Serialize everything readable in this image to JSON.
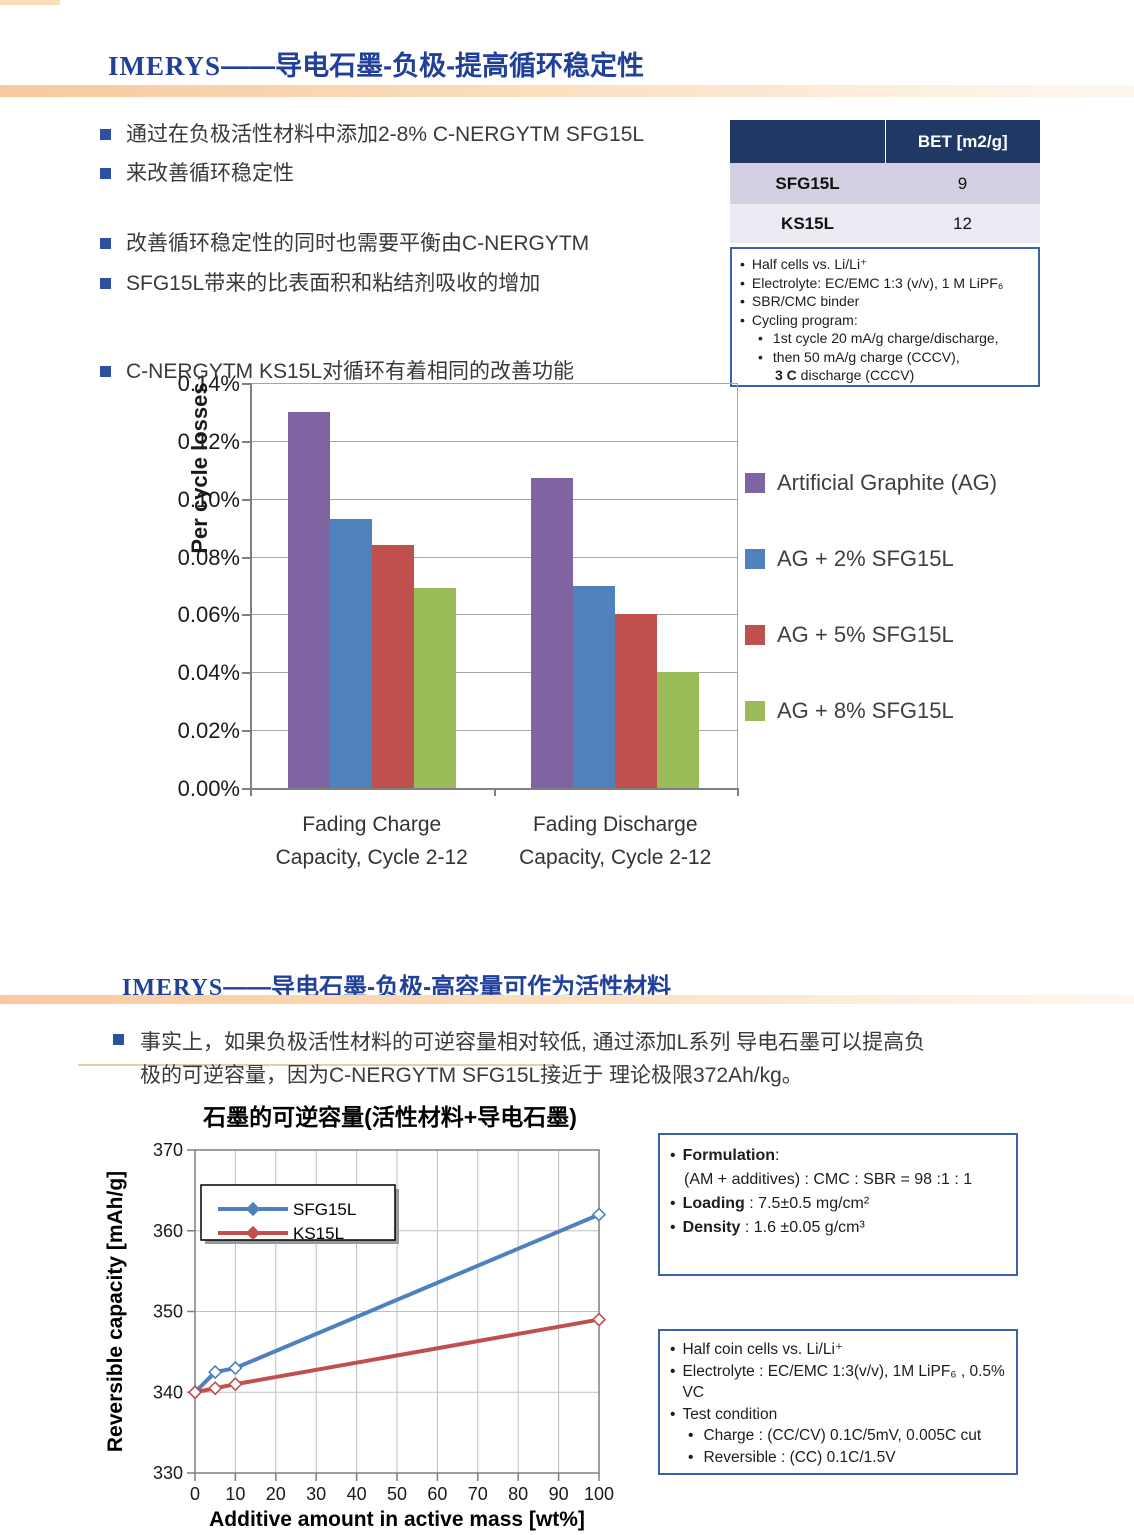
{
  "slide1": {
    "header": {
      "brand": "IMERYS",
      "title": "——导电石墨-负极-提高循环稳定性"
    },
    "bullets": [
      "通过在负极活性材料中添加2-8% C-NERGYTM SFG15L",
      "来改善循环稳定性",
      "改善循环稳定性的同时也需要平衡由C-NERGYTM",
      "SFG15L带来的比表面积和粘结剂吸收的增加",
      "C-NERGYTM KS15L对循环有着相同的改善功能"
    ],
    "bet_table": {
      "col_header": "BET [m2/g]",
      "rows": [
        {
          "material": "SFG15L",
          "bet": "9"
        },
        {
          "material": "KS15L",
          "bet": "12"
        }
      ]
    },
    "conditions": {
      "items": [
        "Half cells vs. Li/Li⁺",
        "Electrolyte: EC/EMC 1:3 (v/v), 1 M LiPF₆",
        "SBR/CMC binder",
        "Cycling program:"
      ],
      "sub_items": [
        "1st cycle 20 mA/g charge/discharge,",
        "then 50  mA/g charge (CCCV),"
      ],
      "cont_bold": "3 C",
      "cont_rest": " discharge (CCCV)"
    }
  },
  "slide2": {
    "header": {
      "brand": "IMERYS",
      "title": "——导电石墨-负极-高容量可作为活性材料"
    },
    "paragraph_line1": "事实上，如果负极活性材料的可逆容量相对较低, 通过添加L系列 导电石墨可以提高负",
    "paragraph_line2": "极的可逆容量，因为C-NERGYTM SFG15L接近于 理论极限372Ah/kg。",
    "formulation_box": {
      "l1_bold": "Formulation",
      "l1_rest": ":",
      "l2": "(AM + additives) : CMC : SBR = 98 :1 : 1",
      "l3_bold": "Loading",
      "l3_rest": " : 7.5±0.5 mg/cm²",
      "l4_bold": "Density",
      "l4_rest": " : 1.6 ±0.05 g/cm³"
    },
    "test_box": {
      "items": [
        "Half coin cells vs. Li/Li⁺",
        "Electrolyte : EC/EMC 1:3(v/v), 1M LiPF₆ , 0.5% VC",
        "Test condition"
      ],
      "sub_items": [
        "Charge : (CC/CV) 0.1C/5mV, 0.005C cut",
        "Reversible : (CC) 0.1C/1.5V"
      ]
    }
  },
  "chart_data": [
    {
      "type": "bar",
      "title": "",
      "ylabel": "Per cycle losses",
      "categories": [
        "Fading Charge Capacity, Cycle 2-12",
        "Fading Discharge Capacity, Cycle 2-12"
      ],
      "series": [
        {
          "name": "Artificial Graphite (AG)",
          "color": "#8064A2",
          "values": [
            0.13,
            0.107
          ]
        },
        {
          "name": "AG + 2% SFG15L",
          "color": "#4F81BD",
          "values": [
            0.093,
            0.07
          ]
        },
        {
          "name": "AG + 5% SFG15L",
          "color": "#C0504D",
          "values": [
            0.084,
            0.06
          ]
        },
        {
          "name": "AG + 8% SFG15L",
          "color": "#9BBB59",
          "values": [
            0.069,
            0.04
          ]
        }
      ],
      "ylim": [
        0,
        0.14
      ],
      "ytick_labels": [
        "0.14%",
        "0.12%",
        "0.10%",
        "0.08%",
        "0.06%",
        "0.04%",
        "0.02%",
        "0.00%"
      ],
      "grid": true,
      "legend_position": "right"
    },
    {
      "type": "line",
      "title": "石墨的可逆容量(活性材料+导电石墨)",
      "xlabel": "Additive amount in active mass  [wt%]",
      "ylabel": "Reversible capacity [mAh/g]",
      "xlim": [
        0,
        100
      ],
      "ylim": [
        330,
        370
      ],
      "xticks": [
        0,
        10,
        20,
        30,
        40,
        50,
        60,
        70,
        80,
        90,
        100
      ],
      "yticks": [
        330,
        340,
        350,
        360,
        370
      ],
      "series": [
        {
          "name": "SFG15L",
          "color": "#4F81BD",
          "x": [
            0,
            5,
            10,
            100
          ],
          "y": [
            340,
            342.5,
            343,
            362
          ]
        },
        {
          "name": "KS15L",
          "color": "#C0504D",
          "x": [
            0,
            5,
            10,
            100
          ],
          "y": [
            340,
            340.5,
            341,
            349
          ]
        }
      ],
      "grid": true,
      "legend_position": "inside-top-left"
    }
  ],
  "colors": {
    "header_blue": "#21409A",
    "band_peach": "#F7C9A0",
    "table_header": "#1F3864",
    "box_border": "#3B62A9",
    "bullet_square": "#2A52A0"
  }
}
